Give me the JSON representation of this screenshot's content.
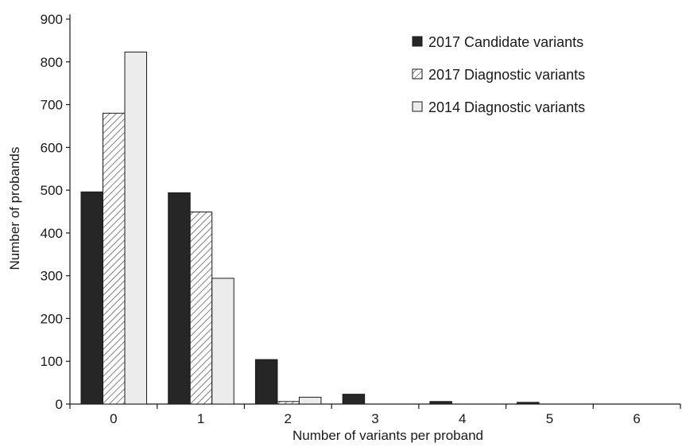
{
  "chart_data": {
    "type": "bar",
    "title": "",
    "xlabel": "Number of variants per proband",
    "ylabel": "Number of probands",
    "categories": [
      "0",
      "1",
      "2",
      "3",
      "4",
      "5",
      "6"
    ],
    "ylim": [
      0,
      900
    ],
    "yticks": [
      "0",
      "100",
      "200",
      "300",
      "400",
      "500",
      "600",
      "700",
      "800",
      "900"
    ],
    "grid": false,
    "legend_position": "top-right",
    "series": [
      {
        "name": "2017 Candidate variants",
        "style": "solid",
        "color": "#262626",
        "values": [
          496,
          494,
          104,
          23,
          6,
          4,
          0
        ]
      },
      {
        "name": "2017 Diagnostic variants",
        "style": "hatched",
        "color": "#ffffff",
        "values": [
          680,
          449,
          6,
          0,
          0,
          0,
          0
        ]
      },
      {
        "name": "2014 Diagnostic variants",
        "style": "light",
        "color": "#ececec",
        "values": [
          823,
          294,
          16,
          0,
          0,
          0,
          0
        ]
      }
    ]
  }
}
